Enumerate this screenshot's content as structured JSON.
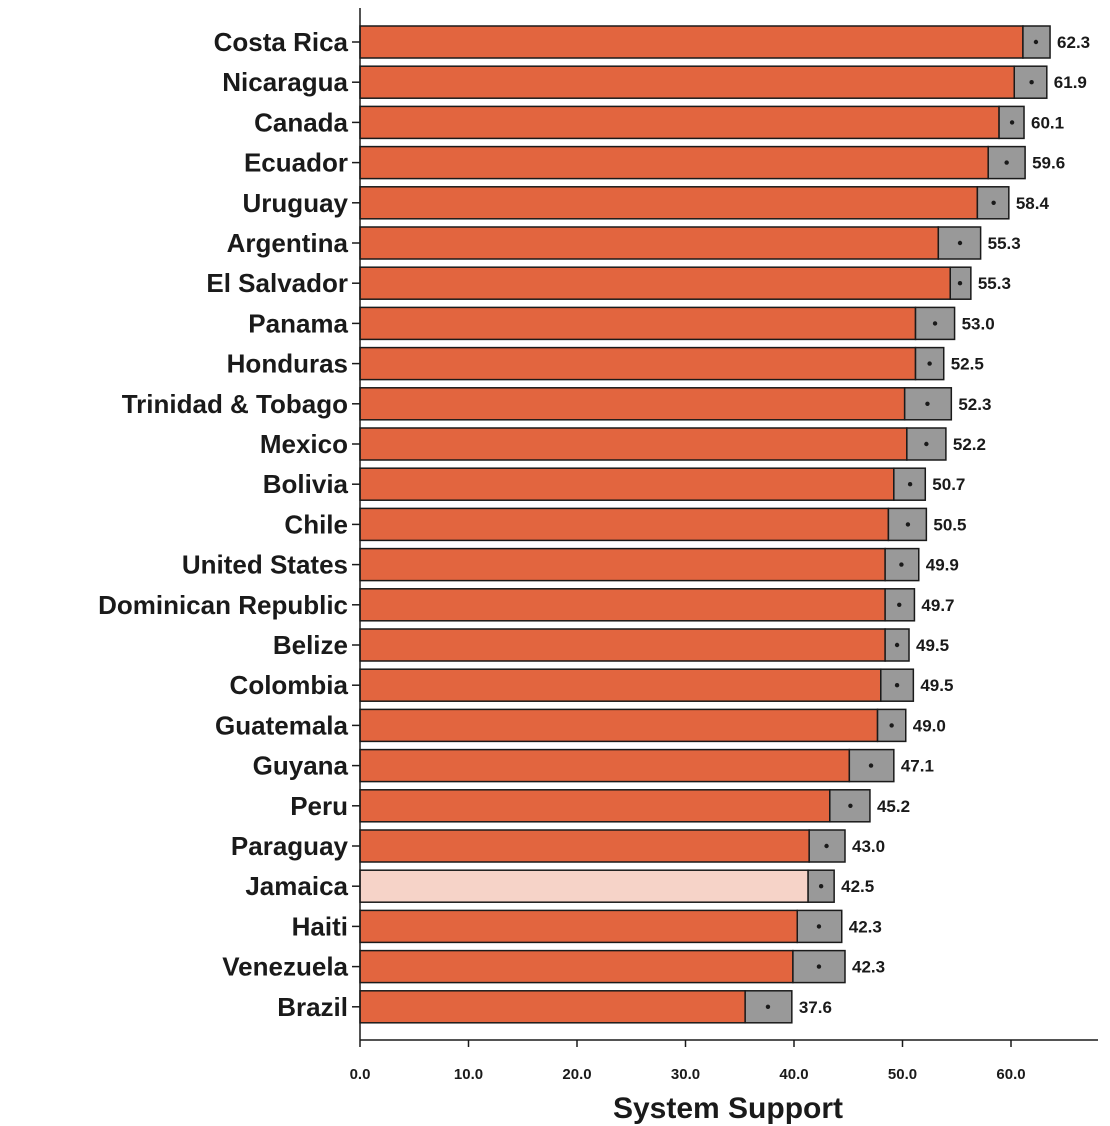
{
  "chart_data": {
    "type": "bar",
    "orientation": "horizontal",
    "xlabel": "System Support",
    "xlim": [
      0,
      68
    ],
    "xticks": [
      "0.0",
      "10.0",
      "20.0",
      "30.0",
      "40.0",
      "50.0",
      "60.0"
    ],
    "xtick_values": [
      0,
      10,
      20,
      30,
      40,
      50,
      60
    ],
    "categories": [
      "Costa Rica",
      "Nicaragua",
      "Canada",
      "Ecuador",
      "Uruguay",
      "Argentina",
      "El Salvador",
      "Panama",
      "Honduras",
      "Trinidad & Tobago",
      "Mexico",
      "Bolivia",
      "Chile",
      "United States",
      "Dominican Republic",
      "Belize",
      "Colombia",
      "Guatemala",
      "Guyana",
      "Peru",
      "Paraguay",
      "Jamaica",
      "Haiti",
      "Venezuela",
      "Brazil"
    ],
    "values": [
      62.3,
      61.9,
      60.1,
      59.6,
      58.4,
      55.3,
      55.3,
      53.0,
      52.5,
      52.3,
      52.2,
      50.7,
      50.5,
      49.9,
      49.7,
      49.5,
      49.5,
      49.0,
      47.1,
      45.2,
      43.0,
      42.5,
      42.3,
      42.3,
      37.6
    ],
    "value_labels": [
      "62.3",
      "61.9",
      "60.1",
      "59.6",
      "58.4",
      "55.3",
      "55.3",
      "53.0",
      "52.5",
      "52.3",
      "52.2",
      "50.7",
      "50.5",
      "49.9",
      "49.7",
      "49.5",
      "49.5",
      "49.0",
      "47.1",
      "45.2",
      "43.0",
      "42.5",
      "42.3",
      "42.3",
      "37.6"
    ],
    "ci_lower": [
      61.1,
      60.3,
      58.9,
      57.9,
      56.9,
      53.3,
      54.4,
      51.2,
      51.2,
      50.2,
      50.4,
      49.2,
      48.7,
      48.4,
      48.4,
      48.4,
      48.0,
      47.7,
      45.1,
      43.3,
      41.4,
      41.3,
      40.3,
      39.9,
      35.5
    ],
    "ci_upper": [
      63.6,
      63.3,
      61.2,
      61.3,
      59.8,
      57.2,
      56.3,
      54.8,
      53.8,
      54.5,
      54.0,
      52.1,
      52.2,
      51.5,
      51.1,
      50.6,
      51.0,
      50.3,
      49.2,
      47.0,
      44.7,
      43.7,
      44.4,
      44.7,
      39.8
    ],
    "highlight_category": "Jamaica",
    "colors": {
      "bar": "#e2653f",
      "highlight_bar": "#f6d3c8",
      "ci_band": "#999999",
      "outline": "#1a1a1a"
    },
    "grid": false
  }
}
